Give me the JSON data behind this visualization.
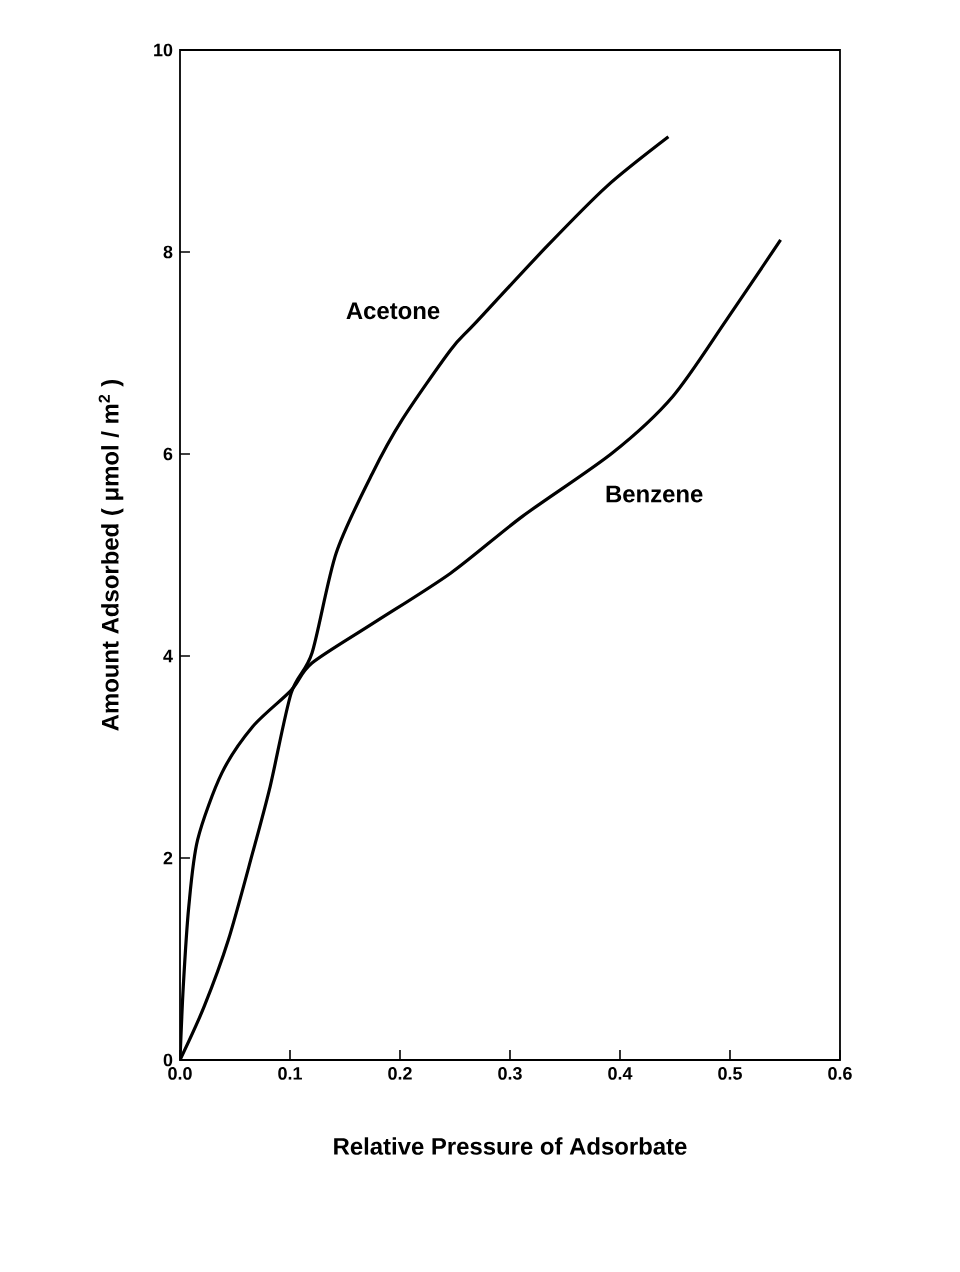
{
  "chart_data": {
    "type": "line",
    "xlabel": "Relative Pressure of Adsorbate",
    "ylabel": "Amount Adsorbed  ( μmol / m$^{2}$ )",
    "xlim": [
      0,
      0.6
    ],
    "ylim": [
      0,
      10
    ],
    "xticks": [
      {
        "value": 0,
        "label": "0.0"
      },
      {
        "value": 0.1,
        "label": "0.1"
      },
      {
        "value": 0.2,
        "label": "0.2"
      },
      {
        "value": 0.3,
        "label": "0.3"
      },
      {
        "value": 0.4,
        "label": "0.4"
      },
      {
        "value": 0.5,
        "label": "0.5"
      },
      {
        "value": 0.6,
        "label": "0.6"
      }
    ],
    "yticks": [
      0,
      2,
      4,
      6,
      8,
      10
    ],
    "grid": false,
    "legend": false,
    "marker": "none",
    "line_style": "solid",
    "series": [
      {
        "name": "Acetone",
        "color": "#000000",
        "x": [
          0,
          0.022,
          0.044,
          0.066,
          0.082,
          0.101,
          0.12,
          0.142,
          0.175,
          0.202,
          0.246,
          0.268,
          0.333,
          0.388,
          0.444
        ],
        "values": [
          0,
          0.53,
          1.19,
          2.05,
          2.71,
          3.63,
          4.03,
          5.02,
          5.81,
          6.34,
          7.03,
          7.29,
          8.05,
          8.65,
          9.14
        ]
      },
      {
        "name": "Benzene",
        "color": "#000000",
        "x": [
          0,
          0.003,
          0.008,
          0.016,
          0.038,
          0.066,
          0.101,
          0.12,
          0.175,
          0.246,
          0.311,
          0.393,
          0.448,
          0.497,
          0.546
        ],
        "values": [
          0,
          0.73,
          1.52,
          2.18,
          2.84,
          3.3,
          3.66,
          3.93,
          4.32,
          4.82,
          5.38,
          6.01,
          6.57,
          7.33,
          8.12
        ]
      }
    ]
  }
}
